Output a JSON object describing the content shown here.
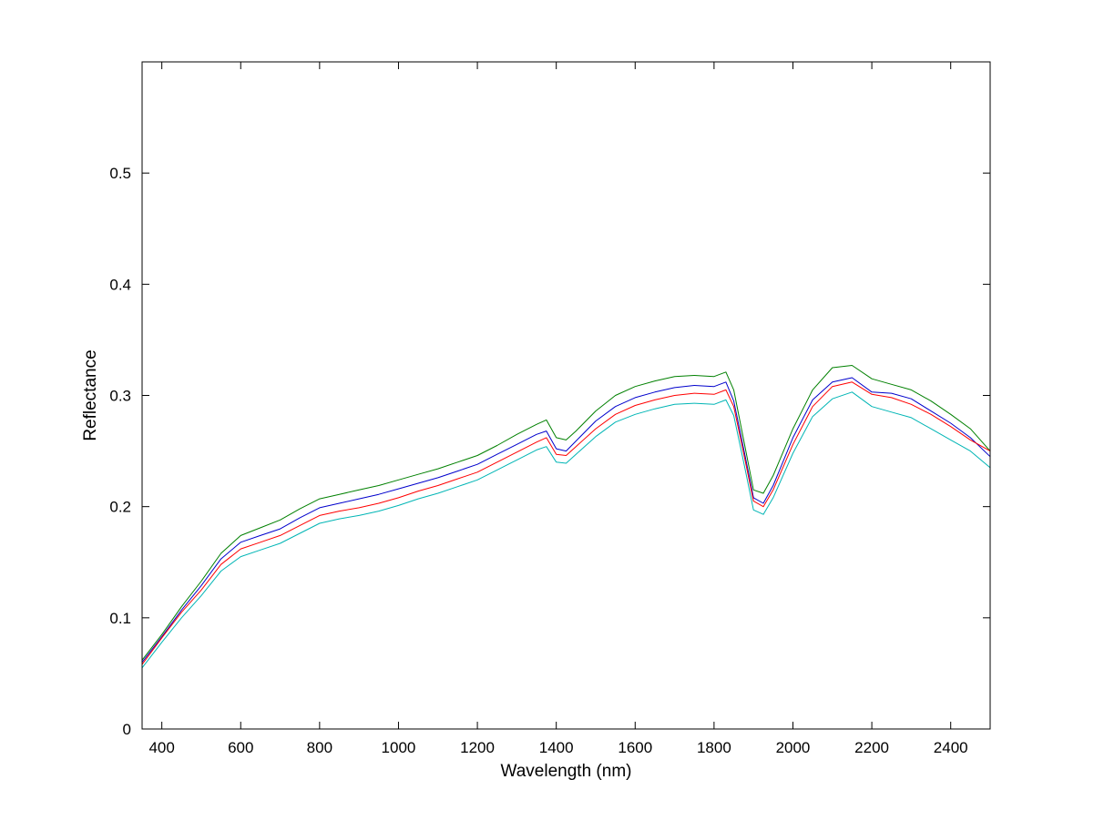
{
  "chart_data": {
    "type": "line",
    "title": "",
    "xlabel": "Wavelength (nm)",
    "ylabel": "Reflectance",
    "xlim": [
      350,
      2500
    ],
    "ylim": [
      0,
      0.6
    ],
    "xticks": [
      400,
      600,
      800,
      1000,
      1200,
      1400,
      1600,
      1800,
      2000,
      2200,
      2400
    ],
    "yticks": [
      0,
      0.1,
      0.2,
      0.3,
      0.4,
      0.5
    ],
    "grid": false,
    "legend": "none",
    "x": [
      350,
      400,
      450,
      500,
      550,
      600,
      650,
      700,
      750,
      800,
      850,
      900,
      950,
      1000,
      1050,
      1100,
      1150,
      1200,
      1250,
      1300,
      1350,
      1375,
      1400,
      1425,
      1450,
      1500,
      1550,
      1600,
      1650,
      1700,
      1750,
      1800,
      1830,
      1850,
      1875,
      1900,
      1925,
      1950,
      2000,
      2050,
      2100,
      2150,
      2200,
      2250,
      2300,
      2350,
      2400,
      2450,
      2500
    ],
    "series": [
      {
        "color": "#008000",
        "values": [
          0.062,
          0.085,
          0.11,
          0.133,
          0.158,
          0.174,
          0.181,
          0.188,
          0.198,
          0.207,
          0.211,
          0.215,
          0.219,
          0.224,
          0.229,
          0.234,
          0.24,
          0.246,
          0.255,
          0.265,
          0.274,
          0.278,
          0.262,
          0.26,
          0.268,
          0.286,
          0.3,
          0.308,
          0.313,
          0.317,
          0.318,
          0.317,
          0.321,
          0.305,
          0.26,
          0.215,
          0.212,
          0.228,
          0.27,
          0.305,
          0.325,
          0.327,
          0.315,
          0.31,
          0.305,
          0.295,
          0.283,
          0.27,
          0.25
        ]
      },
      {
        "color": "#0000cc",
        "values": [
          0.06,
          0.083,
          0.107,
          0.129,
          0.153,
          0.168,
          0.174,
          0.18,
          0.19,
          0.199,
          0.203,
          0.207,
          0.211,
          0.216,
          0.221,
          0.226,
          0.232,
          0.238,
          0.247,
          0.256,
          0.265,
          0.268,
          0.252,
          0.25,
          0.259,
          0.277,
          0.29,
          0.298,
          0.303,
          0.307,
          0.309,
          0.308,
          0.312,
          0.295,
          0.252,
          0.208,
          0.203,
          0.219,
          0.262,
          0.296,
          0.312,
          0.316,
          0.303,
          0.302,
          0.297,
          0.286,
          0.275,
          0.262,
          0.245
        ]
      },
      {
        "color": "#ff0000",
        "values": [
          0.058,
          0.082,
          0.105,
          0.125,
          0.148,
          0.162,
          0.168,
          0.174,
          0.183,
          0.192,
          0.196,
          0.199,
          0.203,
          0.208,
          0.214,
          0.219,
          0.225,
          0.231,
          0.24,
          0.249,
          0.258,
          0.262,
          0.247,
          0.246,
          0.254,
          0.27,
          0.283,
          0.291,
          0.296,
          0.3,
          0.302,
          0.301,
          0.305,
          0.29,
          0.248,
          0.205,
          0.2,
          0.215,
          0.256,
          0.29,
          0.308,
          0.312,
          0.301,
          0.298,
          0.292,
          0.283,
          0.272,
          0.26,
          0.25
        ]
      },
      {
        "color": "#00b5b5",
        "values": [
          0.055,
          0.078,
          0.1,
          0.12,
          0.142,
          0.155,
          0.161,
          0.167,
          0.176,
          0.185,
          0.189,
          0.192,
          0.196,
          0.201,
          0.207,
          0.212,
          0.218,
          0.224,
          0.233,
          0.242,
          0.251,
          0.254,
          0.24,
          0.239,
          0.247,
          0.263,
          0.276,
          0.283,
          0.288,
          0.292,
          0.293,
          0.292,
          0.296,
          0.282,
          0.24,
          0.197,
          0.193,
          0.208,
          0.248,
          0.281,
          0.297,
          0.303,
          0.29,
          0.285,
          0.28,
          0.27,
          0.26,
          0.25,
          0.235
        ]
      }
    ]
  }
}
